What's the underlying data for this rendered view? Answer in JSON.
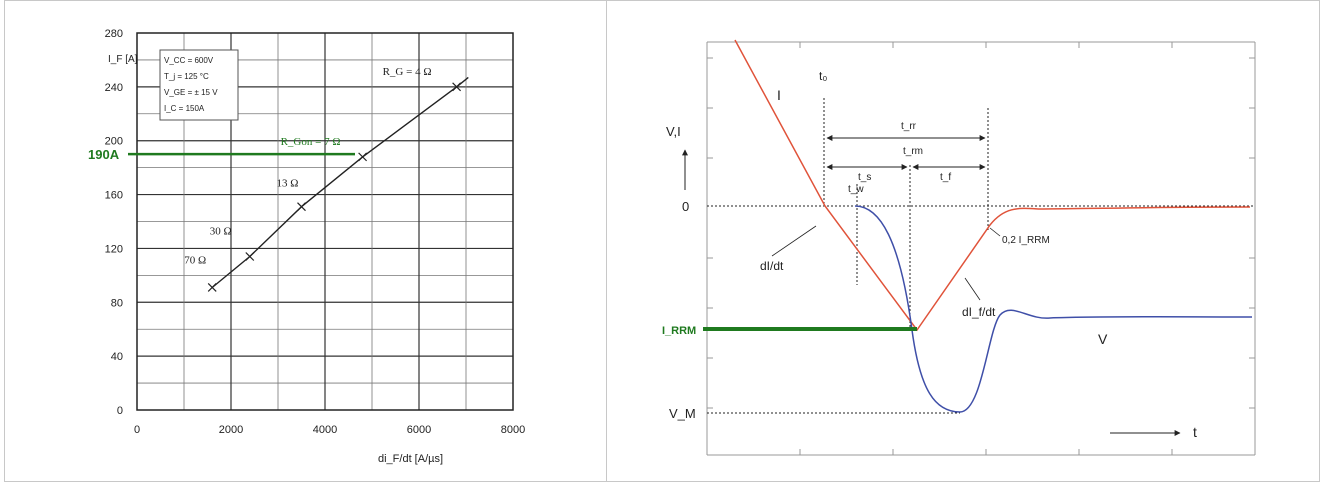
{
  "chart_data": [
    {
      "type": "line",
      "xlabel": "di_F/dt [A/µs]",
      "ylabel": "I_F [A]",
      "xlim": [
        0,
        8000
      ],
      "ylim": [
        0,
        280
      ],
      "x_ticks": [
        "0",
        "2000",
        "4000",
        "6000",
        "8000"
      ],
      "y_ticks": [
        "0",
        "40",
        "80",
        "120",
        "160",
        "200",
        "240",
        "280"
      ],
      "grid": true,
      "conditions": [
        "V_CC = 600V",
        "T_j = 125 °C",
        "V_GE = ± 15 V",
        "I_C = 150A"
      ],
      "series": [
        {
          "x": [
            1600,
            2400,
            3500,
            4800,
            6800,
            7050
          ],
          "y": [
            91,
            114,
            151,
            188,
            240,
            247
          ]
        }
      ],
      "point_labels": [
        {
          "text": "70 Ω",
          "x": 1600,
          "y": 91
        },
        {
          "text": "30 Ω",
          "x": 2400,
          "y": 114
        },
        {
          "text": "13 Ω",
          "x": 3500,
          "y": 151
        },
        {
          "text": "R_Gon = 7 Ω",
          "x": 4800,
          "y": 188
        },
        {
          "text": "R_G = 4 Ω",
          "x": 6800,
          "y": 240
        }
      ],
      "annotation": {
        "text": "190A",
        "y": 190,
        "color": "#1f7a1f"
      }
    },
    {
      "type": "line",
      "xlabel": "t",
      "ylabel": "V,I",
      "colors": {
        "current": "#e0533a",
        "voltage": "#3f4fa8",
        "marker": "#1f7a1f"
      },
      "labels": {
        "I": "I",
        "V": "V",
        "zero": "0",
        "t0": "t₀",
        "tw": "t_w",
        "trr": "t_rr",
        "trm": "t_rm",
        "ts": "t_s",
        "tf": "t_f",
        "didt": "dI/dt",
        "difdt": "dI_f/dt",
        "irrm_frac": "0,2 I_RRM",
        "vm": "V_M",
        "irrm": "I_RRM"
      }
    }
  ]
}
